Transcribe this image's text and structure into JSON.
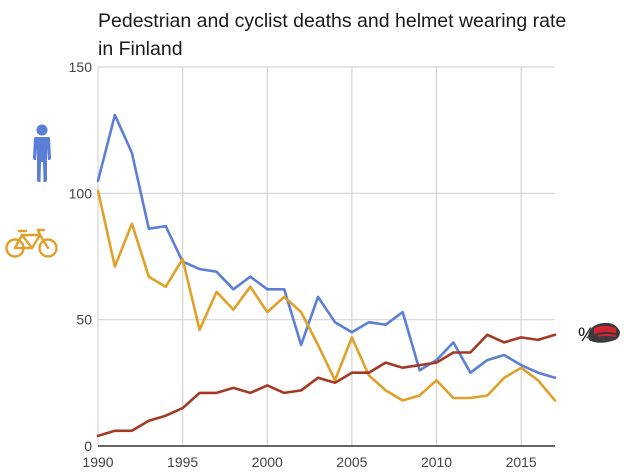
{
  "chart_data": {
    "type": "line",
    "title": "Pedestrian and cyclist deaths and helmet wearing rate in Finland",
    "xlabel": "",
    "ylabel": "",
    "xlim": [
      1990,
      2017
    ],
    "ylim": [
      0,
      150
    ],
    "grid": true,
    "x_ticks": [
      1990,
      1995,
      2000,
      2005,
      2010,
      2015
    ],
    "x_tick_labels": [
      "1990",
      "1995",
      "2000",
      "2005",
      "2010",
      "2015"
    ],
    "y_ticks": [
      0,
      50,
      100,
      150
    ],
    "y_tick_labels": [
      "0",
      "50",
      "100",
      "150"
    ],
    "x": [
      1990,
      1991,
      1992,
      1993,
      1994,
      1995,
      1996,
      1997,
      1998,
      1999,
      2000,
      2001,
      2002,
      2003,
      2004,
      2005,
      2006,
      2007,
      2008,
      2009,
      2010,
      2011,
      2012,
      2013,
      2014,
      2015,
      2016,
      2017
    ],
    "series": [
      {
        "name": "Pedestrian deaths",
        "legend_icon": "pedestrian-icon",
        "color": "#5b7fd6",
        "values": [
          105,
          131,
          116,
          86,
          87,
          73,
          70,
          69,
          62,
          67,
          62,
          62,
          40,
          59,
          49,
          45,
          49,
          48,
          53,
          30,
          34,
          41,
          29,
          34,
          36,
          32,
          29,
          27
        ]
      },
      {
        "name": "Cyclist deaths",
        "legend_icon": "bicycle-icon",
        "color": "#e0a02a",
        "values": [
          101,
          71,
          88,
          67,
          63,
          74,
          46,
          61,
          54,
          63,
          53,
          59,
          53,
          40,
          26,
          43,
          28,
          22,
          18,
          20,
          26,
          19,
          19,
          20,
          27,
          31,
          26,
          18
        ]
      },
      {
        "name": "Helmet wearing rate (%)",
        "legend_icon": "helmet-icon",
        "end_label": "%",
        "color": "#a33a25",
        "values": [
          4,
          6,
          6,
          10,
          12,
          15,
          21,
          21,
          23,
          21,
          24,
          21,
          22,
          27,
          25,
          29,
          29,
          33,
          31,
          32,
          33,
          37,
          37,
          44,
          41,
          43,
          42,
          44
        ]
      }
    ]
  },
  "colors": {
    "grid": "#d4d4d4",
    "axis": "#333333"
  }
}
